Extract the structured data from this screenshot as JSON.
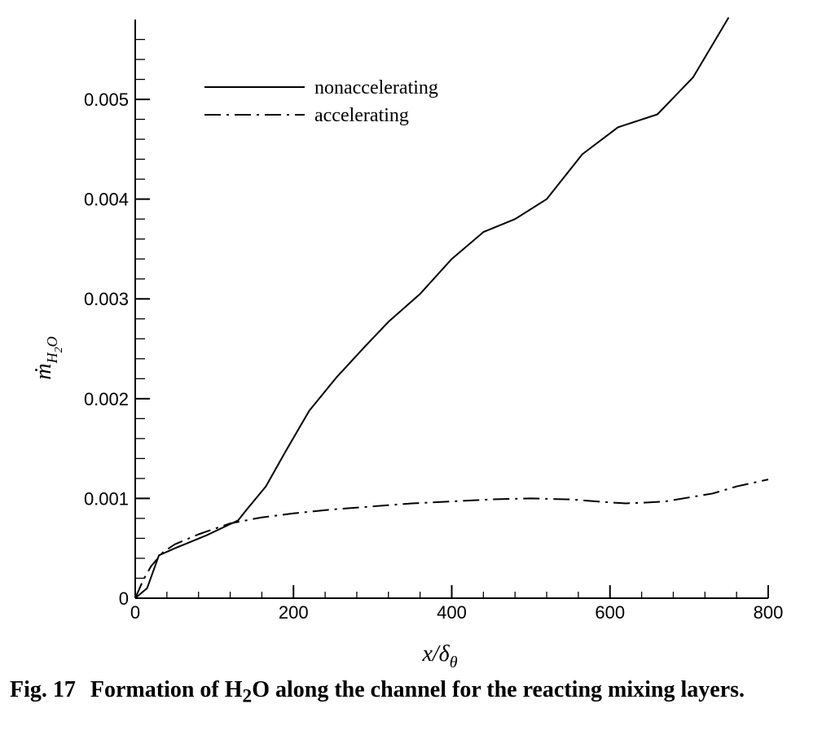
{
  "chart_data": {
    "type": "line",
    "xlabel": "x/δθ",
    "ylabel": "ṁH2O",
    "xlim": [
      0,
      800
    ],
    "ylim": [
      0,
      0.0058
    ],
    "xticks": [
      0,
      200,
      400,
      600,
      800
    ],
    "xtick_labels": [
      "0",
      "200",
      "400",
      "600",
      "800"
    ],
    "yticks": [
      0,
      0.001,
      0.002,
      0.003,
      0.004,
      0.005
    ],
    "ytick_labels": [
      "0",
      "0.001",
      "0.002",
      "0.003",
      "0.004",
      "0.005"
    ],
    "grid": false,
    "legend_position": "top-left",
    "series": [
      {
        "name": "nonaccelerating",
        "style": "solid",
        "x": [
          0,
          15,
          30,
          50,
          90,
          130,
          140,
          165,
          190,
          220,
          255,
          290,
          320,
          360,
          400,
          440,
          480,
          520,
          565,
          610,
          660,
          705,
          750
        ],
        "y": [
          0,
          0.0001,
          0.00043,
          0.0005,
          0.00063,
          0.00078,
          0.00088,
          0.00112,
          0.00147,
          0.00188,
          0.00222,
          0.00252,
          0.00277,
          0.00305,
          0.0034,
          0.00367,
          0.0038,
          0.004,
          0.00445,
          0.00472,
          0.00485,
          0.00522,
          0.00582
        ]
      },
      {
        "name": "accelerating",
        "style": "dash-dot",
        "x": [
          0,
          10,
          20,
          35,
          50,
          80,
          120,
          160,
          200,
          250,
          300,
          350,
          400,
          450,
          500,
          550,
          600,
          620,
          650,
          670,
          700,
          730,
          760,
          800
        ],
        "y": [
          0,
          0.00018,
          0.00032,
          0.00046,
          0.00054,
          0.00064,
          0.00075,
          0.00081,
          0.00085,
          0.00089,
          0.00092,
          0.00095,
          0.00097,
          0.00099,
          0.001,
          0.00099,
          0.00096,
          0.00095,
          0.00096,
          0.00097,
          0.00101,
          0.00105,
          0.00112,
          0.00119
        ]
      }
    ]
  },
  "caption": {
    "label": "Fig. 17",
    "text_before": "Formation of H",
    "subscript": "2",
    "text_after": "O along the channel for the reacting mixing layers."
  }
}
